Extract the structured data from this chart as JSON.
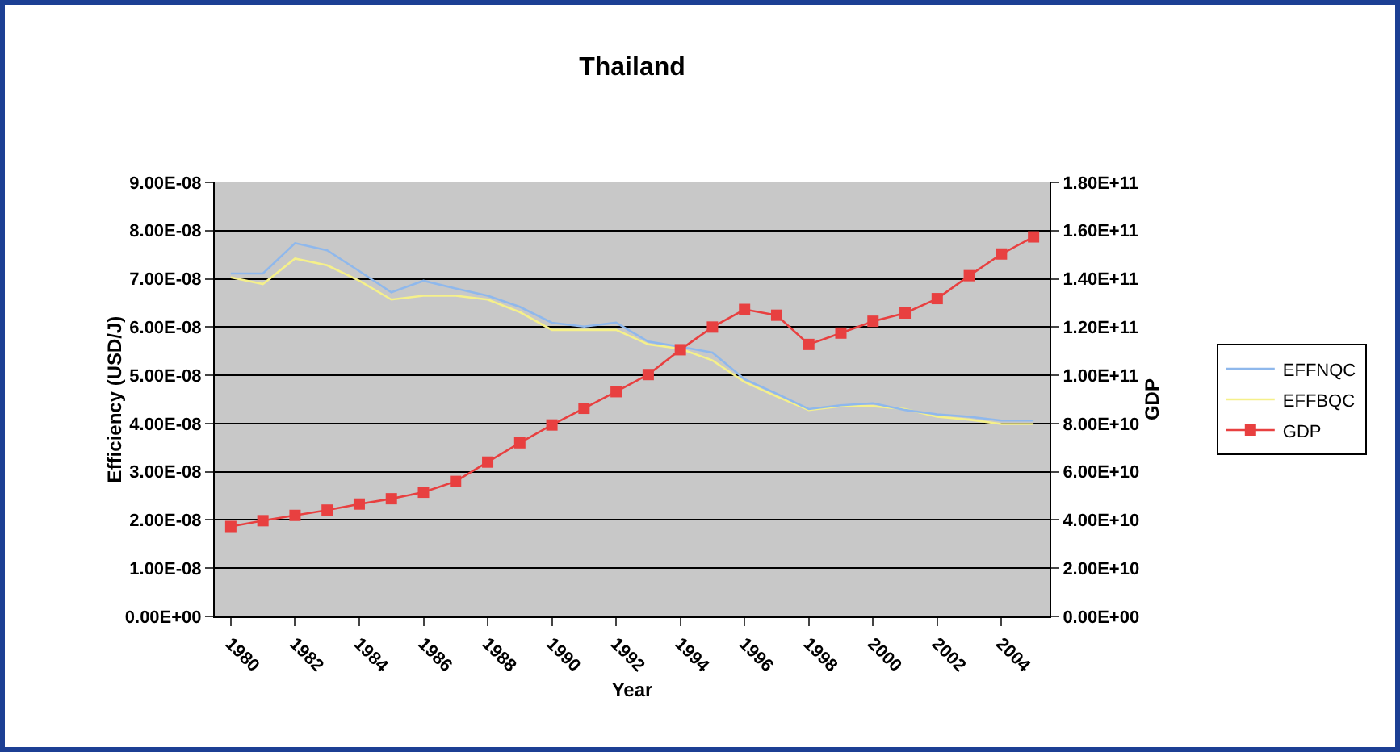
{
  "chart_data": {
    "type": "line",
    "title": "Thailand",
    "xlabel": "Year",
    "ylabel": "Efficiency (USD/J)",
    "y2label": "GDP",
    "categories": [
      "1980",
      null,
      "1982",
      null,
      "1984",
      null,
      "1986",
      null,
      "1988",
      null,
      "1990",
      null,
      "1992",
      null,
      "1994",
      null,
      "1996",
      null,
      "1998",
      null,
      "2000",
      null,
      "2002",
      null,
      "2004",
      null
    ],
    "series": [
      {
        "name": "EFFNQC",
        "color": "#8fb8ec",
        "marker": "none",
        "values": [
          7.11e-08,
          7.11e-08,
          7.74e-08,
          7.59e-08,
          7.16e-08,
          6.72e-08,
          6.96e-08,
          6.8e-08,
          6.65e-08,
          6.42e-08,
          6.09e-08,
          6.01e-08,
          6.09e-08,
          5.7e-08,
          5.59e-08,
          5.47e-08,
          4.92e-08,
          4.62e-08,
          4.3e-08,
          4.38e-08,
          4.42e-08,
          4.28e-08,
          4.19e-08,
          4.14e-08,
          4.06e-08,
          4.06e-08
        ]
      },
      {
        "name": "EFFBQC",
        "color": "#f5f08a",
        "marker": "none",
        "values": [
          7.03e-08,
          6.89e-08,
          7.42e-08,
          7.28e-08,
          6.96e-08,
          6.57e-08,
          6.65e-08,
          6.65e-08,
          6.57e-08,
          6.31e-08,
          5.94e-08,
          5.94e-08,
          5.94e-08,
          5.64e-08,
          5.55e-08,
          5.31e-08,
          4.86e-08,
          4.56e-08,
          4.28e-08,
          4.36e-08,
          4.36e-08,
          4.3e-08,
          4.14e-08,
          4.08e-08,
          3.99e-08,
          3.99e-08
        ]
      },
      {
        "name": "GDP",
        "color": "#e84040",
        "marker": "square",
        "axis": "y2",
        "values": [
          37300000000.0,
          39700000000.0,
          41900000000.0,
          44100000000.0,
          46600000000.0,
          48800000000.0,
          51500000000.0,
          56000000000.0,
          64000000000.0,
          72000000000.0,
          79400000000.0,
          86300000000.0,
          93200000000.0,
          100300000000.0,
          110600000000.0,
          120000000000.0,
          127300000000.0,
          124900000000.0,
          112800000000.0,
          117500000000.0,
          122400000000.0,
          125800000000.0,
          131800000000.0,
          141300000000.0,
          150300000000.0,
          157400000000.0
        ]
      }
    ],
    "ylim": [
      0,
      9e-08
    ],
    "yticks": [
      {
        "value": 0,
        "label": "0.00E+00"
      },
      {
        "value": 1e-08,
        "label": "1.00E-08"
      },
      {
        "value": 2e-08,
        "label": "2.00E-08"
      },
      {
        "value": 3e-08,
        "label": "3.00E-08"
      },
      {
        "value": 4e-08,
        "label": "4.00E-08"
      },
      {
        "value": 5e-08,
        "label": "5.00E-08"
      },
      {
        "value": 6e-08,
        "label": "6.00E-08"
      },
      {
        "value": 7e-08,
        "label": "7.00E-08"
      },
      {
        "value": 8e-08,
        "label": "8.00E-08"
      },
      {
        "value": 9e-08,
        "label": "9.00E-08"
      }
    ],
    "y2lim": [
      0,
      180000000000.0
    ],
    "y2ticks": [
      {
        "value": 0,
        "label": "0.00E+00"
      },
      {
        "value": 20000000000.0,
        "label": "2.00E+10"
      },
      {
        "value": 40000000000.0,
        "label": "4.00E+10"
      },
      {
        "value": 60000000000.0,
        "label": "6.00E+10"
      },
      {
        "value": 80000000000.0,
        "label": "8.00E+10"
      },
      {
        "value": 100000000000.0,
        "label": "1.00E+11"
      },
      {
        "value": 120000000000.0,
        "label": "1.20E+11"
      },
      {
        "value": 140000000000.0,
        "label": "1.40E+11"
      },
      {
        "value": 160000000000.0,
        "label": "1.60E+11"
      },
      {
        "value": 180000000000.0,
        "label": "1.80E+11"
      }
    ],
    "grid": "y",
    "legend": "right",
    "line_style": "solid"
  }
}
